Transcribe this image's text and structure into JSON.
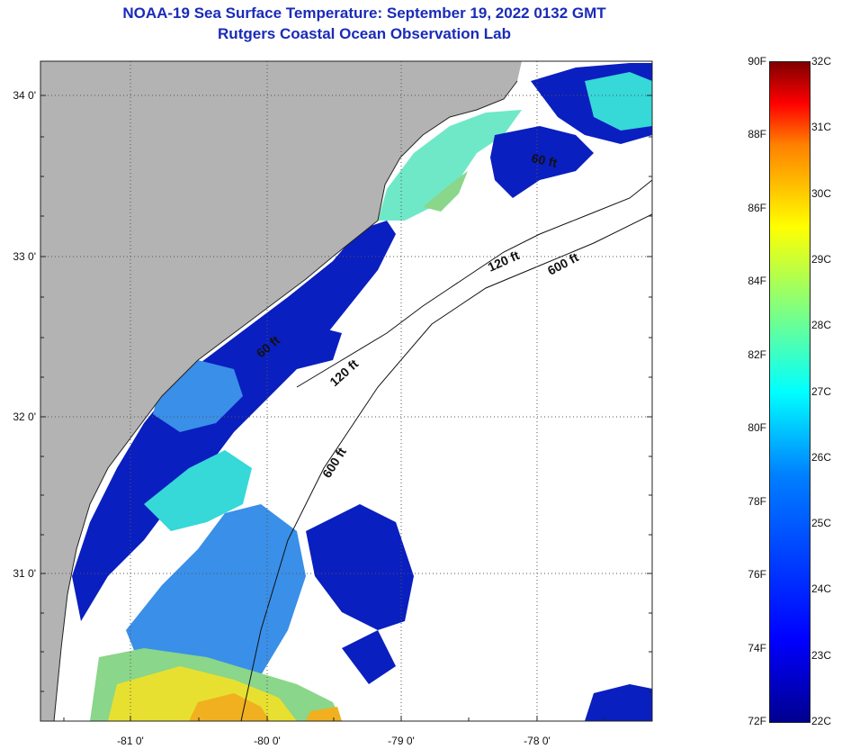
{
  "header": {
    "title": "NOAA-19 Sea Surface Temperature:  September 19, 2022 0132 GMT",
    "subtitle": "Rutgers Coastal Ocean Observation Lab"
  },
  "map": {
    "lat_labels": [
      {
        "value": 34,
        "text": "34 0'"
      },
      {
        "value": 33,
        "text": "33 0'"
      },
      {
        "value": 32,
        "text": "32 0'"
      },
      {
        "value": 31,
        "text": "31 0'"
      }
    ],
    "lon_labels": [
      {
        "value": -81,
        "text": "-81 0'"
      },
      {
        "value": -80,
        "text": "-80 0'"
      },
      {
        "value": -79,
        "text": "-79 0'"
      },
      {
        "value": -78,
        "text": "-78 0'"
      }
    ],
    "contour_labels": [
      "120 ft",
      "600 ft",
      "120 ft",
      "600 ft",
      "60 ft",
      "60 ft"
    ],
    "colors": {
      "land": "#b3b3b3",
      "cloud": "#ffffff",
      "grid": "#555555"
    }
  },
  "colorbar": {
    "fahrenheit": [
      "90F",
      "88F",
      "86F",
      "84F",
      "82F",
      "80F",
      "78F",
      "76F",
      "74F",
      "72F"
    ],
    "celsius": [
      "32C",
      "31C",
      "30C",
      "29C",
      "28C",
      "27C",
      "26C",
      "25C",
      "24C",
      "23C",
      "22C"
    ]
  }
}
